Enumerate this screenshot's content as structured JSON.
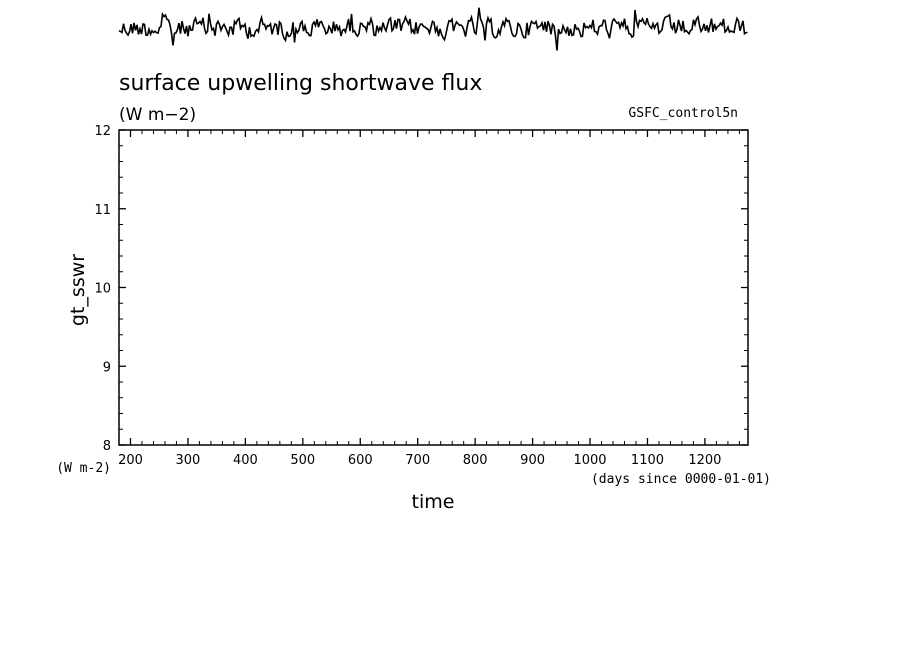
{
  "chart_data": {
    "type": "line",
    "title": "surface upwelling shortwave flux",
    "units_label": "(W m−2)",
    "dataset_label": "GSFC_control5n",
    "ylabel": "gt_sswr",
    "y_units_label": "(W m-2)",
    "xlabel": "time",
    "x_units_label": "(days since 0000-01-01)",
    "xlim": [
      180,
      1275
    ],
    "ylim": [
      8,
      12
    ],
    "x_ticks": [
      200,
      300,
      400,
      500,
      600,
      700,
      800,
      900,
      1000,
      1100,
      1200
    ],
    "y_ticks": [
      8,
      9,
      10,
      11,
      12
    ],
    "grid": false,
    "legend": "none",
    "series": [],
    "inset_trace": {
      "description_visible": "noisy time series trace above the plot frame",
      "x_range": [
        180,
        1275
      ],
      "color": "#000000"
    }
  }
}
